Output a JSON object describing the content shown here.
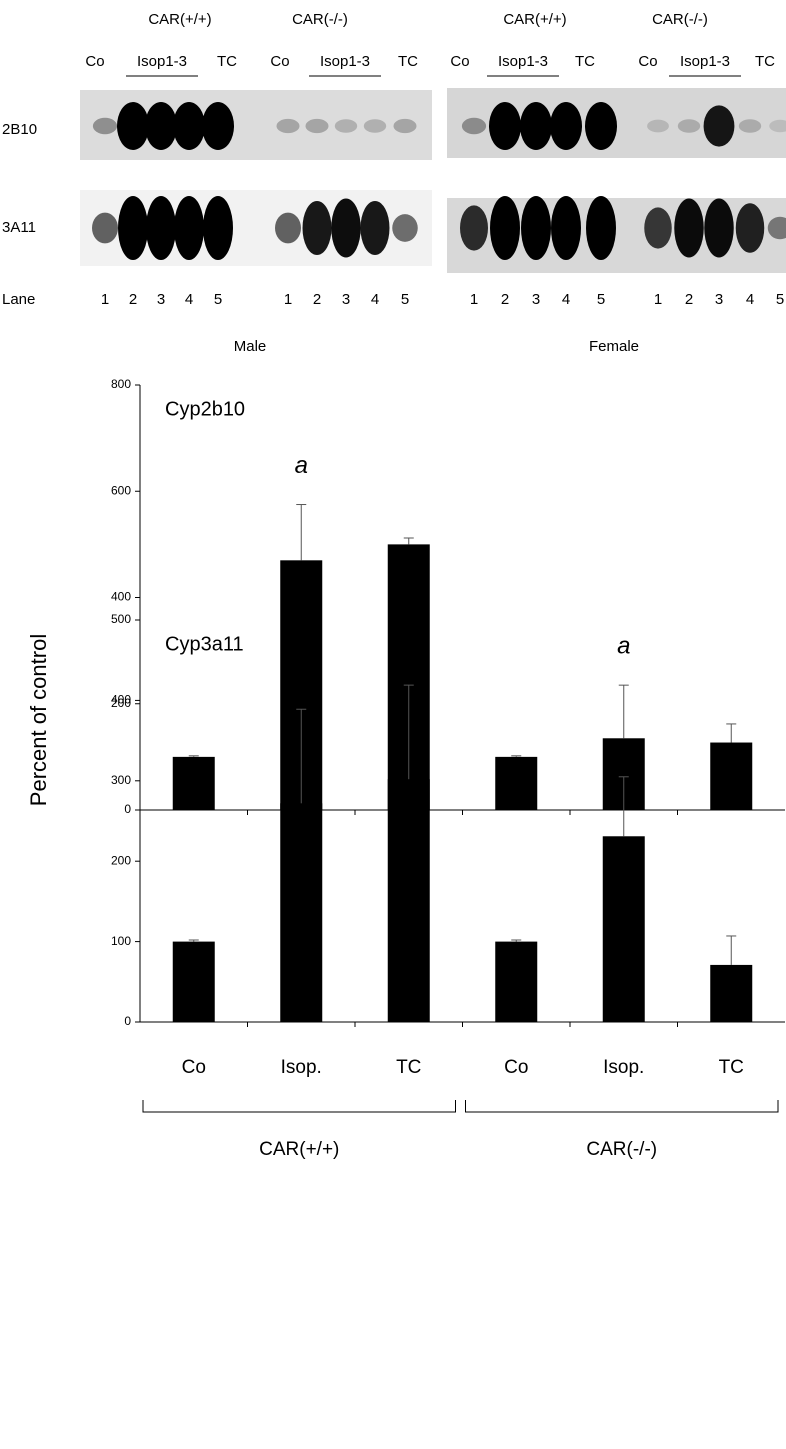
{
  "blot": {
    "genotype_labels": [
      "CAR(+/+)",
      "CAR(-/-)",
      "CAR(+/+)",
      "CAR(-/-)"
    ],
    "lane_headers": [
      "Co",
      "Isop1-3",
      "TC"
    ],
    "row_labels": [
      "2B10",
      "3A11"
    ],
    "lane_label": "Lane",
    "lane_numbers": [
      "1",
      "2",
      "3",
      "4",
      "5"
    ],
    "sex_labels": [
      "Male",
      "Female"
    ]
  },
  "y_label": "Percent of control",
  "chart_data": [
    {
      "type": "bar",
      "title": "Cyp2b10",
      "color": "#000000",
      "values": [
        100,
        470,
        500,
        100,
        135,
        127
      ],
      "errors": [
        2,
        105,
        12,
        2,
        100,
        35
      ],
      "annotations": [
        {
          "text": "a",
          "index": 1
        },
        {
          "text": "a",
          "index": 4
        }
      ],
      "ylim": [
        0,
        800
      ],
      "yticks": [
        0,
        200,
        400,
        600,
        800
      ]
    },
    {
      "type": "bar",
      "title": "Cyp3a11",
      "color": "#000000",
      "categories": [
        "Co",
        "Isop.",
        "TC",
        "Co",
        "Isop.",
        "TC"
      ],
      "values": [
        100,
        272,
        302,
        100,
        231,
        71
      ],
      "errors": [
        2,
        117,
        117,
        2,
        74,
        36
      ],
      "group_labels": [
        "CAR(+/+)",
        "CAR(-/-)"
      ],
      "ylim": [
        0,
        500
      ],
      "yticks": [
        0,
        100,
        200,
        300,
        400,
        500
      ]
    }
  ]
}
